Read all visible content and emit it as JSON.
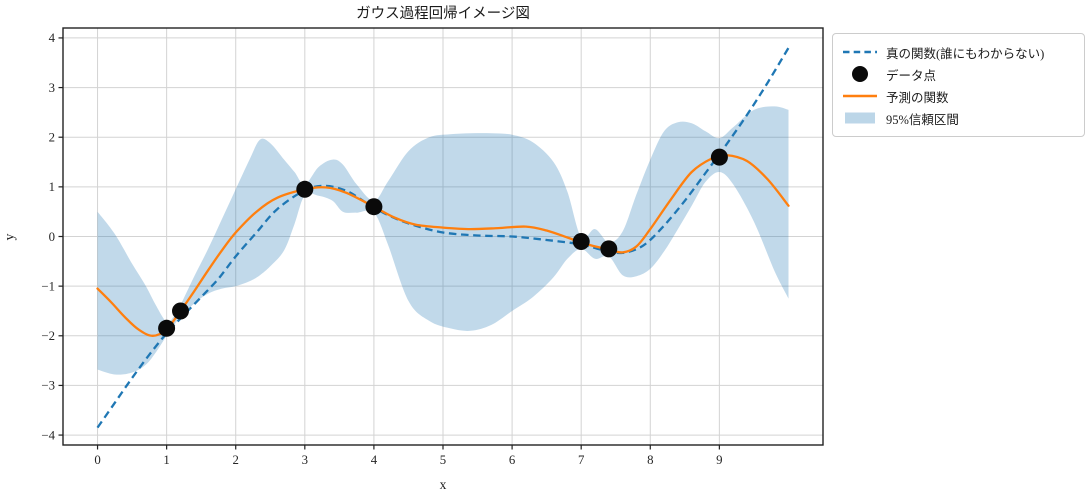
{
  "chart_data": {
    "type": "line",
    "title": "ガウス過程回帰イメージ図",
    "xlabel": "x",
    "ylabel": "y",
    "xlim": [
      -0.5,
      10.5
    ],
    "ylim": [
      -4.2,
      4.2
    ],
    "xticks": [
      0,
      1,
      2,
      3,
      4,
      5,
      6,
      7,
      8,
      9
    ],
    "yticks": [
      -4,
      -3,
      -2,
      -1,
      0,
      1,
      2,
      3,
      4
    ],
    "grid": true,
    "legend_position": "outside-upper-right",
    "colors": {
      "true_function": "#1f77b4",
      "prediction": "#ff7f0e",
      "data_points": "#0a0a0a",
      "confidence_band": "rgba(31,119,180,0.28)",
      "grid_line": "#d3d3d3",
      "spine": "#222222",
      "text": "#262626"
    },
    "legend": [
      {
        "label": "真の関数(誰にもわからない)",
        "style": "dashed-line",
        "color": "#1f77b4"
      },
      {
        "label": "データ点",
        "style": "marker",
        "color": "#0a0a0a"
      },
      {
        "label": "予測の関数",
        "style": "solid-line",
        "color": "#ff7f0e"
      },
      {
        "label": "95%信頼区間",
        "style": "band",
        "color": "#bcd6e8"
      }
    ],
    "series": [
      {
        "name": "true_function",
        "label": "真の関数(誰にもわからない)",
        "line": "dashed",
        "points": [
          [
            0,
            -3.85
          ],
          [
            0.25,
            -3.35
          ],
          [
            0.5,
            -2.85
          ],
          [
            0.75,
            -2.38
          ],
          [
            1.0,
            -1.95
          ],
          [
            1.25,
            -1.58
          ],
          [
            1.5,
            -1.22
          ],
          [
            1.75,
            -0.85
          ],
          [
            2.0,
            -0.4
          ],
          [
            2.3,
            0.08
          ],
          [
            2.6,
            0.55
          ],
          [
            3.0,
            0.93
          ],
          [
            3.3,
            1.02
          ],
          [
            3.6,
            0.92
          ],
          [
            3.8,
            0.76
          ],
          [
            4.0,
            0.58
          ],
          [
            4.3,
            0.37
          ],
          [
            4.6,
            0.22
          ],
          [
            5.0,
            0.08
          ],
          [
            5.5,
            0.02
          ],
          [
            6.0,
            0.0
          ],
          [
            6.5,
            -0.07
          ],
          [
            7.0,
            -0.16
          ],
          [
            7.3,
            -0.27
          ],
          [
            7.6,
            -0.33
          ],
          [
            7.9,
            -0.18
          ],
          [
            8.2,
            0.22
          ],
          [
            8.5,
            0.72
          ],
          [
            8.8,
            1.28
          ],
          [
            9.1,
            1.85
          ],
          [
            9.4,
            2.45
          ],
          [
            9.7,
            3.1
          ],
          [
            10,
            3.8
          ]
        ]
      },
      {
        "name": "prediction",
        "label": "予測の関数",
        "line": "solid",
        "points": [
          [
            0,
            -1.05
          ],
          [
            0.2,
            -1.33
          ],
          [
            0.4,
            -1.63
          ],
          [
            0.6,
            -1.88
          ],
          [
            0.8,
            -2.0
          ],
          [
            1.0,
            -1.87
          ],
          [
            1.2,
            -1.5
          ],
          [
            1.4,
            -1.1
          ],
          [
            1.6,
            -0.68
          ],
          [
            1.8,
            -0.28
          ],
          [
            2.0,
            0.08
          ],
          [
            2.3,
            0.5
          ],
          [
            2.6,
            0.78
          ],
          [
            3.0,
            0.95
          ],
          [
            3.3,
            0.99
          ],
          [
            3.6,
            0.88
          ],
          [
            4.0,
            0.6
          ],
          [
            4.3,
            0.38
          ],
          [
            4.6,
            0.24
          ],
          [
            5.0,
            0.18
          ],
          [
            5.4,
            0.15
          ],
          [
            5.8,
            0.17
          ],
          [
            6.2,
            0.2
          ],
          [
            6.5,
            0.12
          ],
          [
            6.8,
            -0.02
          ],
          [
            7.0,
            -0.12
          ],
          [
            7.2,
            -0.2
          ],
          [
            7.4,
            -0.26
          ],
          [
            7.6,
            -0.32
          ],
          [
            7.8,
            -0.2
          ],
          [
            8.0,
            0.15
          ],
          [
            8.3,
            0.75
          ],
          [
            8.6,
            1.3
          ],
          [
            8.9,
            1.58
          ],
          [
            9.1,
            1.64
          ],
          [
            9.4,
            1.52
          ],
          [
            9.7,
            1.15
          ],
          [
            10,
            0.62
          ]
        ]
      }
    ],
    "confidence_band": {
      "label": "95%信頼区間",
      "points_x_lo_hi": [
        [
          0,
          -2.68,
          0.5
        ],
        [
          0.25,
          -2.78,
          0.05
        ],
        [
          0.5,
          -2.74,
          -0.55
        ],
        [
          0.7,
          -2.58,
          -1.0
        ],
        [
          0.85,
          -2.32,
          -1.4
        ],
        [
          1.0,
          -2.0,
          -1.72
        ],
        [
          1.1,
          -1.8,
          -1.62
        ],
        [
          1.2,
          -1.62,
          -1.38
        ],
        [
          1.4,
          -1.35,
          -0.8
        ],
        [
          1.6,
          -1.15,
          -0.25
        ],
        [
          1.8,
          -1.05,
          0.35
        ],
        [
          2.0,
          -1.0,
          0.95
        ],
        [
          2.2,
          -0.9,
          1.55
        ],
        [
          2.35,
          -0.78,
          1.95
        ],
        [
          2.5,
          -0.6,
          1.88
        ],
        [
          2.7,
          -0.28,
          1.55
        ],
        [
          2.85,
          0.25,
          1.3
        ],
        [
          3.0,
          0.83,
          1.05
        ],
        [
          3.2,
          0.82,
          1.4
        ],
        [
          3.4,
          0.72,
          1.55
        ],
        [
          3.55,
          0.5,
          1.45
        ],
        [
          3.75,
          0.48,
          1.05
        ],
        [
          4.0,
          0.48,
          0.72
        ],
        [
          4.2,
          -0.15,
          1.1
        ],
        [
          4.5,
          -1.3,
          1.72
        ],
        [
          4.8,
          -1.7,
          2.0
        ],
        [
          5.1,
          -1.85,
          2.06
        ],
        [
          5.4,
          -1.9,
          2.08
        ],
        [
          5.7,
          -1.78,
          2.08
        ],
        [
          6.0,
          -1.5,
          2.05
        ],
        [
          6.3,
          -1.22,
          1.9
        ],
        [
          6.6,
          -0.82,
          1.5
        ],
        [
          6.8,
          -0.45,
          0.9
        ],
        [
          7.0,
          -0.25,
          -0.02
        ],
        [
          7.2,
          -0.45,
          0.15
        ],
        [
          7.4,
          -0.4,
          -0.12
        ],
        [
          7.6,
          -0.78,
          0.1
        ],
        [
          7.8,
          -0.8,
          0.85
        ],
        [
          8.0,
          -0.65,
          1.55
        ],
        [
          8.2,
          -0.3,
          2.12
        ],
        [
          8.4,
          0.15,
          2.3
        ],
        [
          8.6,
          0.62,
          2.28
        ],
        [
          8.8,
          1.1,
          2.12
        ],
        [
          9.0,
          1.3,
          1.98
        ],
        [
          9.2,
          1.05,
          2.2
        ],
        [
          9.5,
          0.3,
          2.55
        ],
        [
          9.8,
          -0.7,
          2.62
        ],
        [
          10,
          -1.25,
          2.55
        ]
      ]
    },
    "data_points": {
      "label": "データ点",
      "points": [
        [
          1.0,
          -1.85
        ],
        [
          1.2,
          -1.5
        ],
        [
          3.0,
          0.95
        ],
        [
          4.0,
          0.6
        ],
        [
          7.0,
          -0.1
        ],
        [
          7.4,
          -0.25
        ],
        [
          9.0,
          1.6
        ]
      ]
    }
  }
}
